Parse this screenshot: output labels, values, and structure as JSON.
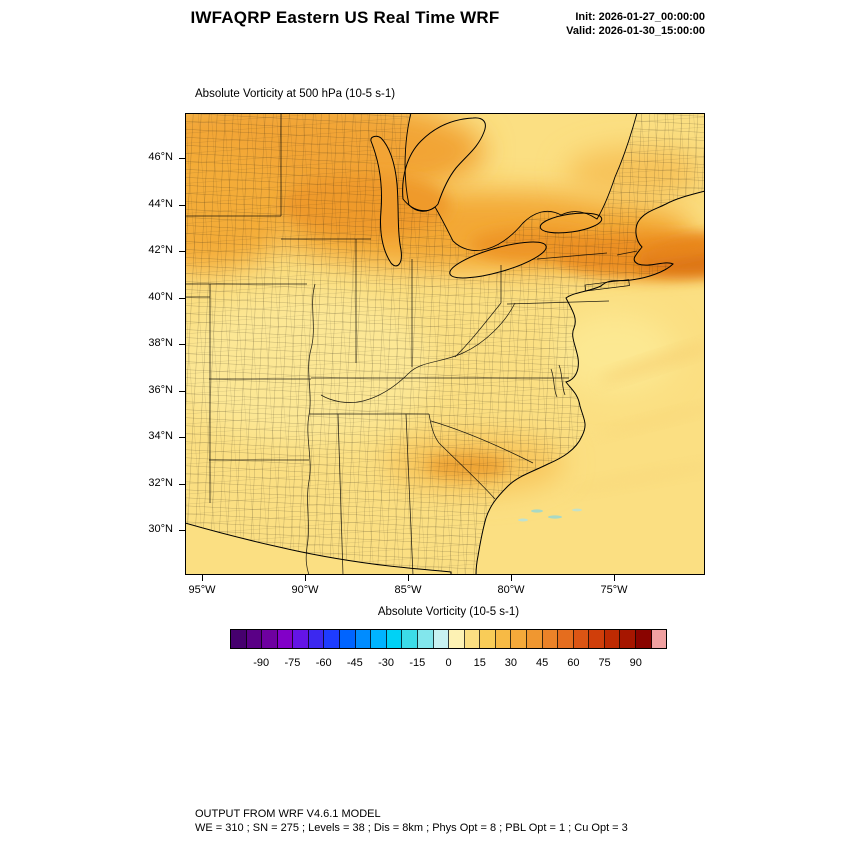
{
  "header": {
    "title": "IWFAQRP Eastern US Real Time WRF",
    "init_line": "Init: 2026-01-27_00:00:00",
    "valid_line": "Valid: 2026-01-30_15:00:00"
  },
  "map": {
    "title": "Absolute Vorticity at 500 hPa  (10-5 s-1)",
    "lat_labels": [
      "46°N",
      "44°N",
      "42°N",
      "40°N",
      "38°N",
      "36°N",
      "34°N",
      "32°N",
      "30°N"
    ],
    "lon_labels": [
      "95°W",
      "90°W",
      "85°W",
      "80°W",
      "75°W"
    ]
  },
  "colorbar": {
    "title": "Absolute Vorticity  (10-5 s-1)",
    "tick_labels": [
      "-90",
      "-75",
      "-60",
      "-45",
      "-30",
      "-15",
      "0",
      "15",
      "30",
      "45",
      "60",
      "75",
      "90"
    ],
    "range": [
      -105,
      105
    ],
    "colors": [
      "#46006E",
      "#5A0086",
      "#6E00A0",
      "#8200C8",
      "#6414E6",
      "#3C28F0",
      "#1E3CFF",
      "#0064FF",
      "#008CFF",
      "#00B4FF",
      "#00D2F5",
      "#3CDCE8",
      "#82E6EC",
      "#C8F2F2",
      "#FDF2B4",
      "#FBDF82",
      "#F9CC58",
      "#F7BA45",
      "#F4A93A",
      "#F09730",
      "#EB8228",
      "#E56D1E",
      "#DC5514",
      "#D03E0A",
      "#BE2A02",
      "#A61600",
      "#8A0400",
      "#F0A0A0"
    ]
  },
  "footer": {
    "line1": "OUTPUT FROM WRF V4.6.1 MODEL",
    "line2": "WE = 310 ; SN = 275 ; Levels = 38 ; Dis = 8km ; Phys Opt = 8 ; PBL Opt = 1 ; Cu Opt = 3"
  },
  "chart_data": {
    "type": "heatmap",
    "title": "Absolute Vorticity at 500 hPa (10-5 s-1)",
    "variable": "Absolute Vorticity",
    "level": "500 hPa",
    "units": "10-5 s-1",
    "lat_ticks": [
      46,
      44,
      42,
      40,
      38,
      36,
      34,
      32,
      30
    ],
    "lon_ticks": [
      95,
      90,
      85,
      80,
      75
    ],
    "colorbar_ticks": [
      -90,
      -75,
      -60,
      -45,
      -30,
      -15,
      0,
      15,
      30,
      45,
      60,
      75,
      90
    ],
    "colorbar_range": [
      -105,
      105
    ],
    "field_summary": "Background field ~5-15 over most of the Eastern US and Atlantic; enhanced vorticity band ~30-55 stretching from the upper Midwest across the Great Lakes into New England with a darker maximum near southern New England; secondary maximum ~25-35 over Georgia / South Carolina; weak pale streaks over the open Atlantic."
  }
}
